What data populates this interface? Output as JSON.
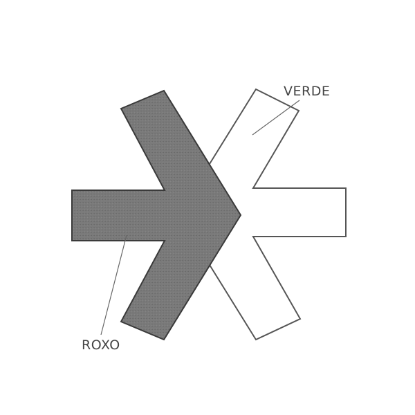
{
  "labels": {
    "green": "VERDE",
    "purple": "ROXO"
  },
  "colors": {
    "purple_fill": "#777777",
    "purple_stroke": "#3a3a3a",
    "green_fill": "#ffffff",
    "green_stroke": "#555555",
    "label_text": "#444444",
    "leader_line": "#666666"
  }
}
